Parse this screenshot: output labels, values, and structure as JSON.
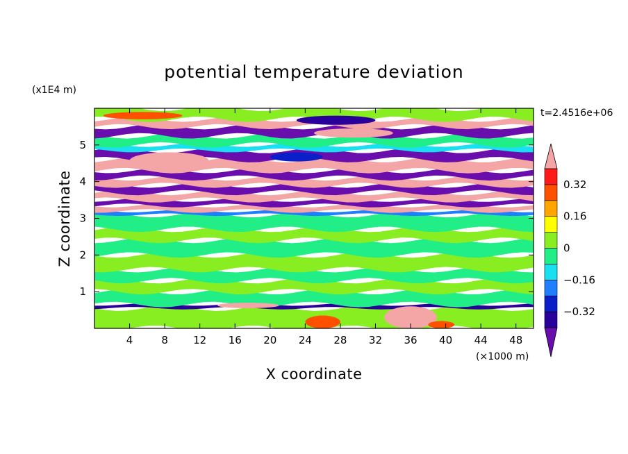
{
  "chart_data": {
    "type": "heatmap",
    "title": "potential temperature deviation",
    "xlabel": "X coordinate",
    "ylabel": "Z coordinate",
    "x_unit": "(×1000 m)",
    "y_unit": "(x1E4 m)",
    "time_label": "t=2.4516e+06",
    "xlim": [
      0,
      50
    ],
    "ylim": [
      0,
      6
    ],
    "x_ticks": [
      4,
      8,
      12,
      16,
      20,
      24,
      28,
      32,
      36,
      40,
      44,
      48
    ],
    "y_ticks": [
      1,
      2,
      3,
      4,
      5
    ],
    "colorbar": {
      "levels": [
        -0.4,
        -0.32,
        -0.24,
        -0.16,
        -0.08,
        0,
        0.08,
        0.16,
        0.24,
        0.32,
        0.4
      ],
      "colors": [
        "#6a0dad",
        "#2a009a",
        "#0a1fc8",
        "#1f7fff",
        "#18e0f0",
        "#22ee88",
        "#88ee22",
        "#ffff00",
        "#ffa500",
        "#ff5000",
        "#ff1a1a",
        "#f4a6a6"
      ],
      "tick_values": [
        0.32,
        0.16,
        0,
        -0.16,
        -0.32
      ],
      "tick_labels": [
        "0.32",
        "0.16",
        "0",
        "−0.16",
        "−0.32"
      ]
    },
    "bands": [
      {
        "z0": 0.0,
        "z1": 0.55,
        "color": "#88ee22"
      },
      {
        "z0": 0.55,
        "z1": 0.65,
        "color": "#2a009a"
      },
      {
        "z0": 0.65,
        "z1": 1.0,
        "color": "#22ee88"
      },
      {
        "z0": 1.0,
        "z1": 1.3,
        "color": "#88ee22"
      },
      {
        "z0": 1.3,
        "z1": 1.6,
        "color": "#22ee88"
      },
      {
        "z0": 1.6,
        "z1": 2.0,
        "color": "#88ee22"
      },
      {
        "z0": 2.0,
        "z1": 2.4,
        "color": "#22ee88"
      },
      {
        "z0": 2.4,
        "z1": 2.7,
        "color": "#88ee22"
      },
      {
        "z0": 2.7,
        "z1": 3.1,
        "color": "#22ee88"
      },
      {
        "z0": 3.1,
        "z1": 3.2,
        "color": "#1f7fff"
      },
      {
        "z0": 3.2,
        "z1": 3.35,
        "color": "#f4a6a6"
      },
      {
        "z0": 3.35,
        "z1": 3.5,
        "color": "#6a0dad"
      },
      {
        "z0": 3.5,
        "z1": 3.7,
        "color": "#f4a6a6"
      },
      {
        "z0": 3.7,
        "z1": 3.9,
        "color": "#6a0dad"
      },
      {
        "z0": 3.9,
        "z1": 4.1,
        "color": "#f4a6a6"
      },
      {
        "z0": 4.1,
        "z1": 4.3,
        "color": "#6a0dad"
      },
      {
        "z0": 4.3,
        "z1": 4.6,
        "color": "#f4a6a6"
      },
      {
        "z0": 4.6,
        "z1": 4.85,
        "color": "#6a0dad"
      },
      {
        "z0": 4.85,
        "z1": 5.0,
        "color": "#18e0f0"
      },
      {
        "z0": 5.0,
        "z1": 5.25,
        "color": "#22ee88"
      },
      {
        "z0": 5.25,
        "z1": 5.5,
        "color": "#6a0dad"
      },
      {
        "z0": 5.5,
        "z1": 5.7,
        "color": "#f4a6a6"
      },
      {
        "z0": 5.7,
        "z1": 6.0,
        "color": "#88ee22"
      }
    ],
    "blobs": [
      {
        "x0": 1,
        "x1": 10,
        "z0": 5.7,
        "z1": 5.9,
        "color": "#ff5000"
      },
      {
        "x0": 23,
        "x1": 32,
        "z0": 5.55,
        "z1": 5.8,
        "color": "#2a009a"
      },
      {
        "x0": 25,
        "x1": 34,
        "z0": 5.2,
        "z1": 5.45,
        "color": "#f4a6a6"
      },
      {
        "x0": 4,
        "x1": 13,
        "z0": 4.35,
        "z1": 4.8,
        "color": "#f4a6a6"
      },
      {
        "x0": 20,
        "x1": 26,
        "z0": 4.55,
        "z1": 4.8,
        "color": "#0a1fc8"
      },
      {
        "x0": 14,
        "x1": 21,
        "z0": 0.55,
        "z1": 0.7,
        "color": "#f4a6a6"
      },
      {
        "x0": 24,
        "x1": 28,
        "z0": 0.0,
        "z1": 0.35,
        "color": "#ff5000"
      },
      {
        "x0": 33,
        "x1": 39,
        "z0": 0.0,
        "z1": 0.6,
        "color": "#f4a6a6"
      },
      {
        "x0": 38,
        "x1": 41,
        "z0": 0.0,
        "z1": 0.2,
        "color": "#ff5000"
      }
    ]
  }
}
